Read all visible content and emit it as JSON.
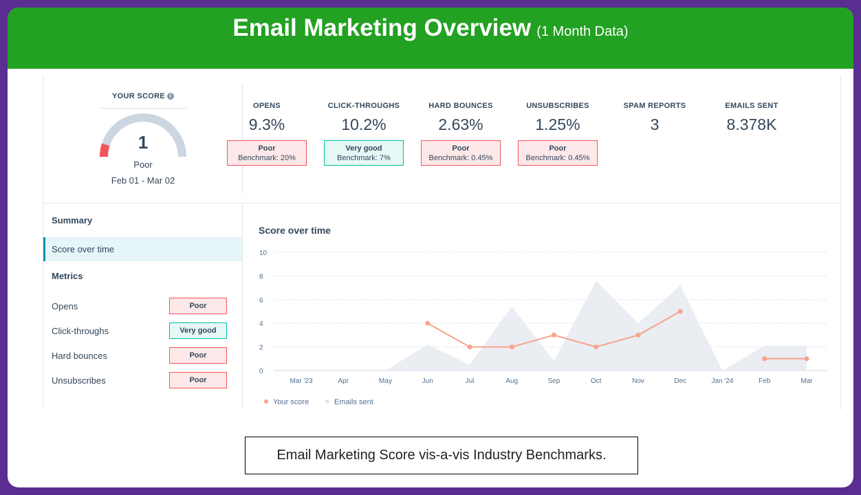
{
  "banner": {
    "title": "Email Marketing Overview",
    "subtitle": "(1 Month Data)"
  },
  "score": {
    "title": "YOUR SCORE",
    "info_icon": "info-icon",
    "value": "1",
    "rating": "Poor",
    "date_range": "Feb 01 - Mar 02",
    "gauge_fraction": 0.1,
    "colors": {
      "track": "#cbd6e2",
      "fill": "#f2545b"
    }
  },
  "metrics": [
    {
      "label": "OPENS",
      "value": "9.3%",
      "rating": "Poor",
      "benchmark": "Benchmark: 20%",
      "status": "poor"
    },
    {
      "label": "CLICK-THROUGHS",
      "value": "10.2%",
      "rating": "Very good",
      "benchmark": "Benchmark: 7%",
      "status": "good"
    },
    {
      "label": "HARD BOUNCES",
      "value": "2.63%",
      "rating": "Poor",
      "benchmark": "Benchmark: 0.45%",
      "status": "poor"
    },
    {
      "label": "UNSUBSCRIBES",
      "value": "1.25%",
      "rating": "Poor",
      "benchmark": "Benchmark: 0.45%",
      "status": "poor"
    },
    {
      "label": "SPAM REPORTS",
      "value": "3"
    },
    {
      "label": "EMAILS SENT",
      "value": "8.378K"
    }
  ],
  "sidebar": {
    "summary_heading": "Summary",
    "selected_item": "Score over time",
    "metrics_heading": "Metrics",
    "rows": [
      {
        "name": "Opens",
        "badge": "Poor",
        "status": "poor"
      },
      {
        "name": "Click-throughs",
        "badge": "Very good",
        "status": "good"
      },
      {
        "name": "Hard bounces",
        "badge": "Poor",
        "status": "poor"
      },
      {
        "name": "Unsubscribes",
        "badge": "Poor",
        "status": "poor"
      }
    ]
  },
  "chart_title": "Score over time",
  "chart_data": {
    "type": "line",
    "categories": [
      "Mar '23",
      "Apr",
      "May",
      "Jun",
      "Jul",
      "Aug",
      "Sep",
      "Oct",
      "Nov",
      "Dec",
      "Jan '24",
      "Feb",
      "Mar"
    ],
    "ylim": [
      0,
      10
    ],
    "yticks": [
      0,
      2,
      4,
      6,
      8,
      10
    ],
    "grid": true,
    "legend_position": "bottom-left",
    "series": [
      {
        "name": "Your score",
        "type": "line",
        "color": "#f8a38c",
        "values": [
          null,
          null,
          null,
          4,
          2,
          2,
          3,
          2,
          3,
          5,
          null,
          1,
          1
        ]
      },
      {
        "name": "Emails sent",
        "type": "area",
        "color": "#eaedf2",
        "values": [
          0,
          0,
          0,
          2.2,
          0.5,
          5.4,
          0.8,
          7.6,
          4,
          7.2,
          0,
          2.1,
          2.1
        ]
      }
    ]
  },
  "caption": "Email Marketing Score vis-a-vis Industry Benchmarks."
}
